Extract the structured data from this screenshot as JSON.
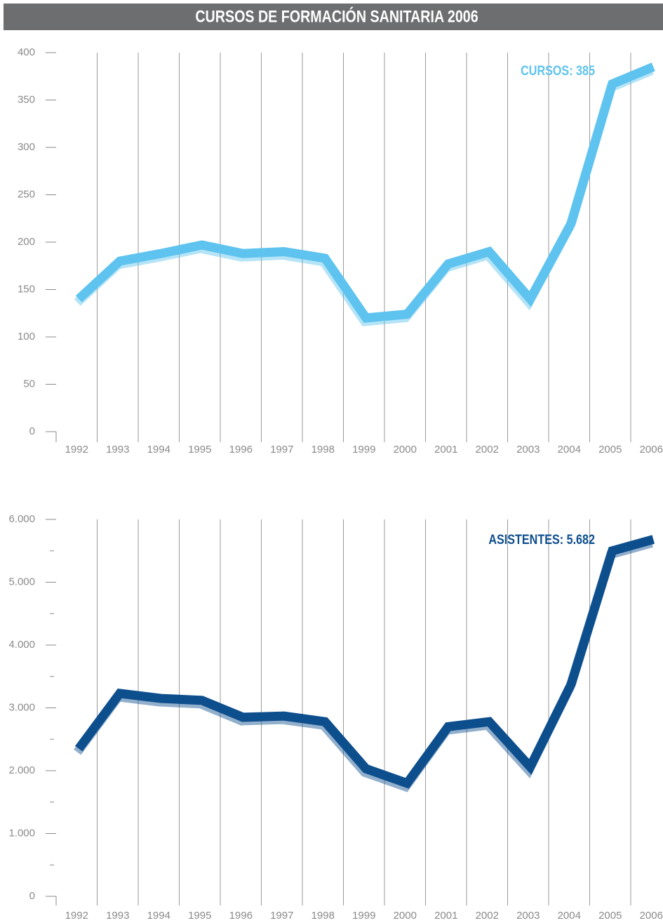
{
  "title": "CURSOS DE FORMACIÓN SANITARIA 2006",
  "chart_data": [
    {
      "type": "line",
      "annotation": "CURSOS: 385",
      "categories": [
        "1992",
        "1993",
        "1994",
        "1995",
        "1996",
        "1997",
        "1998",
        "1999",
        "2000",
        "2001",
        "2002",
        "2003",
        "2004",
        "2005",
        "2006"
      ],
      "series": [
        {
          "color": "#5ec3ee",
          "values": [
            140,
            180,
            188,
            197,
            188,
            190,
            183,
            120,
            124,
            177,
            190,
            140,
            220,
            367,
            385
          ]
        }
      ],
      "ylim": [
        0,
        400
      ],
      "yticks": [
        0,
        50,
        100,
        150,
        200,
        250,
        300,
        350,
        400
      ],
      "grid": true
    },
    {
      "type": "line",
      "annotation": "ASISTENTES: 5.682",
      "categories": [
        "1992",
        "1993",
        "1994",
        "1995",
        "1996",
        "1997",
        "1998",
        "1999",
        "2000",
        "2001",
        "2002",
        "2003",
        "2004",
        "2005",
        "2006"
      ],
      "series": [
        {
          "color": "#0d4e8d",
          "values": [
            2350,
            3230,
            3150,
            3120,
            2850,
            2870,
            2780,
            2030,
            1800,
            2700,
            2780,
            2060,
            3380,
            5500,
            5682
          ]
        }
      ],
      "ylim": [
        0,
        6000
      ],
      "yticks": [
        0,
        {
          "value": 1000,
          "label": "1.000"
        },
        {
          "value": 2000,
          "label": "2.000"
        },
        {
          "value": 3000,
          "label": "3.000"
        },
        {
          "value": 4000,
          "label": "4.000"
        },
        {
          "value": 5000,
          "label": "5.000"
        },
        {
          "value": 6000,
          "label": "6.000"
        }
      ],
      "yminor": [
        500,
        1500,
        2500,
        3500,
        4500,
        5500
      ],
      "grid": true
    }
  ]
}
